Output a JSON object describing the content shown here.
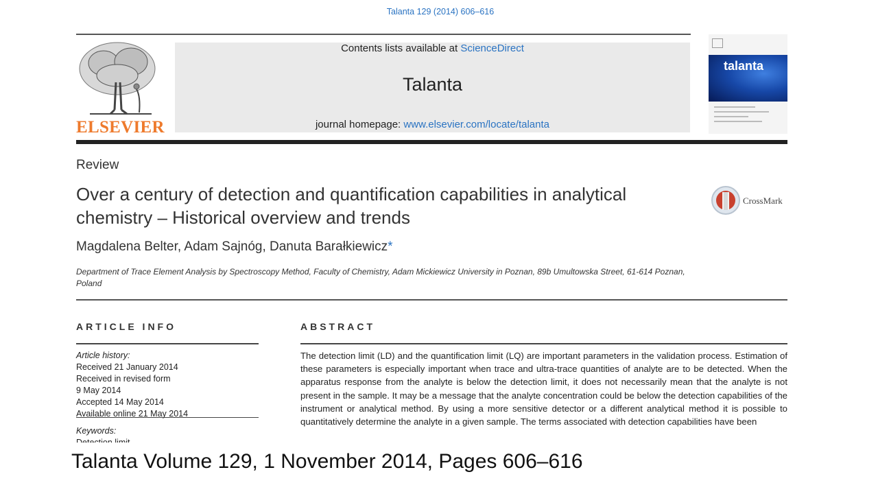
{
  "citation": "Talanta 129 (2014) 606–616",
  "header": {
    "publisher_name": "ELSEVIER",
    "contents_prefix": "Contents lists available at ",
    "contents_link": "ScienceDirect",
    "journal_title": "Talanta",
    "homepage_prefix": "journal homepage: ",
    "homepage_link": "www.elsevier.com/locate/talanta",
    "cover_title": "talanta"
  },
  "article": {
    "section": "Review",
    "title": "Over a century of detection and quantification capabilities in analytical chemistry – Historical overview and trends",
    "authors": "Magdalena Belter, Adam Sajnóg, Danuta Barałkiewicz",
    "author_marker": "*",
    "affiliation": "Department of Trace Element Analysis by Spectroscopy Method, Faculty of Chemistry, Adam Mickiewicz University in Poznan, 89b Umultowska Street, 61-614 Poznan, Poland",
    "crossmark": "CrossMark"
  },
  "article_info": {
    "heading": "ARTICLE INFO",
    "history_label": "Article history:",
    "history": [
      "Received 21 January 2014",
      "Received in revised form",
      "9 May 2014",
      "Accepted 14 May 2014",
      "Available online 21 May 2014"
    ],
    "keywords_label": "Keywords:",
    "keywords": [
      "Detection limit"
    ]
  },
  "abstract": {
    "heading": "ABSTRACT",
    "text": "The detection limit (LD) and the quantification limit (LQ) are important parameters in the validation process. Estimation of these parameters is especially important when trace and ultra-trace quantities of analyte are to be detected. When the apparatus response from the analyte is below the detection limit, it does not necessarily mean that the analyte is not present in the sample. It may be a message that the analyte concentration could be below the detection capabilities of the instrument or analytical method. By using a more sensitive detector or a different analytical method it is possible to quantitatively determine the analyte in a given sample. The terms associated with detection capabilities have been"
  },
  "caption": "Talanta Volume 129, 1 November 2014, Pages 606–616",
  "colors": {
    "link": "#2a73c2",
    "elsevier": "#ee7a2c",
    "cover_blue": "#1748a8",
    "crossmark_red": "#c8412f"
  }
}
